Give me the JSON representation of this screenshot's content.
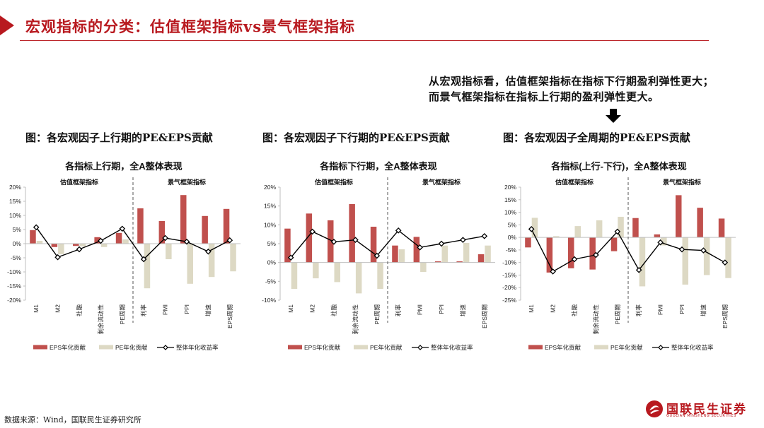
{
  "title": "宏观指标的分类：估值框架指标vs景气框架指标",
  "note_lines": [
    "从宏观指标看，估值框架指标在指标下行期盈利弹性更大；",
    "而景气框架指标在指标上行期的盈利弹性更大。"
  ],
  "figure_captions": [
    "图：各宏观因子上行期的PE&EPS贡献",
    "图：各宏观因子下行期的PE&EPS贡献",
    "图：各宏观因子全周期的PE&EPS贡献"
  ],
  "source": "数据来源：Wind，国联民生证券研究所",
  "logo": {
    "cn": "国联民生证券",
    "en": "GUOLIAN MINSHENG SECURITIES"
  },
  "colors": {
    "accent": "#b8191f",
    "eps": "#c0504d",
    "pe": "#ddd9c4",
    "line": "#000000"
  },
  "chart_data": [
    {
      "type": "bar",
      "title": "各指标上行期，全A整体表现",
      "group_labels": [
        "估值框架指标",
        "景气框架指标"
      ],
      "categories": [
        "M1",
        "M2",
        "社融",
        "剩余流动性",
        "PE周期",
        "利率",
        "PMI",
        "PPI",
        "增速",
        "EPS周期"
      ],
      "yticks": [
        "20%",
        "15%",
        "10%",
        "5%",
        "0%",
        "-5%",
        "-10%",
        "-15%",
        "-20%"
      ],
      "ylim": [
        -20,
        20
      ],
      "series": [
        {
          "name": "EPS年化贡献",
          "kind": "bar",
          "values": [
            4.8,
            -1.2,
            -0.8,
            2.3,
            3.8,
            12.5,
            8.0,
            17.2,
            9.8,
            12.3
          ]
        },
        {
          "name": "PE年化贡献",
          "kind": "bar",
          "values": [
            1.0,
            -3.7,
            -1.0,
            -1.2,
            1.5,
            -15.8,
            -5.5,
            -14.2,
            -11.8,
            -9.8
          ]
        },
        {
          "name": "整体年化收益率",
          "kind": "line",
          "values": [
            5.8,
            -4.8,
            -2.0,
            1.0,
            5.3,
            -5.5,
            2.0,
            0.7,
            -2.8,
            1.2
          ]
        }
      ]
    },
    {
      "type": "bar",
      "title": "各指标下行期，全A整体表现",
      "group_labels": [
        "估值框架指标",
        "景气框架指标"
      ],
      "categories": [
        "M1",
        "M2",
        "社融",
        "剩余流动性",
        "PE周期",
        "利率",
        "PMI",
        "PPI",
        "增速",
        "EPS周期"
      ],
      "yticks": [
        "20%",
        "15%",
        "10%",
        "5%",
        "0%",
        "-5%",
        "-10%"
      ],
      "ylim": [
        -10,
        20
      ],
      "series": [
        {
          "name": "EPS年化贡献",
          "kind": "bar",
          "values": [
            9.0,
            13.0,
            11.2,
            15.5,
            9.5,
            4.5,
            6.8,
            0.3,
            0.3,
            2.2
          ]
        },
        {
          "name": "PE年化贡献",
          "kind": "bar",
          "values": [
            -7.0,
            -4.2,
            -5.2,
            -8.2,
            -7.0,
            3.5,
            -2.5,
            4.5,
            5.2,
            4.5
          ]
        },
        {
          "name": "整体年化收益率",
          "kind": "line",
          "values": [
            1.3,
            8.2,
            5.5,
            6.0,
            1.8,
            8.5,
            4.0,
            5.0,
            6.0,
            7.0
          ]
        }
      ]
    },
    {
      "type": "bar",
      "title": "各指标(上行-下行)，全A整体表现",
      "group_labels": [
        "估值框架指标",
        "景气框架指标"
      ],
      "categories": [
        "M1",
        "M2",
        "社融",
        "剩余流动性",
        "PE周期",
        "利率",
        "PMI",
        "PPI",
        "增速",
        "EPS周期"
      ],
      "yticks": [
        "20%",
        "15%",
        "10%",
        "5%",
        "0%",
        "-5%",
        "-10%",
        "-15%",
        "-20%",
        "-25%"
      ],
      "ylim": [
        -25,
        20
      ],
      "series": [
        {
          "name": "EPS年化贡献",
          "kind": "bar",
          "values": [
            -4.0,
            -14.0,
            -12.3,
            -12.8,
            -5.5,
            7.7,
            1.2,
            16.8,
            11.8,
            7.5
          ]
        },
        {
          "name": "PE年化贡献",
          "kind": "bar",
          "values": [
            7.8,
            0.5,
            4.5,
            6.8,
            8.2,
            -19.5,
            -3.2,
            -18.8,
            -15.0,
            -16.2
          ]
        },
        {
          "name": "整体年化收益率",
          "kind": "line",
          "values": [
            3.3,
            -13.6,
            -8.7,
            -7.0,
            2.3,
            -13.0,
            -2.0,
            -4.8,
            -5.2,
            -10.0
          ]
        }
      ]
    }
  ]
}
